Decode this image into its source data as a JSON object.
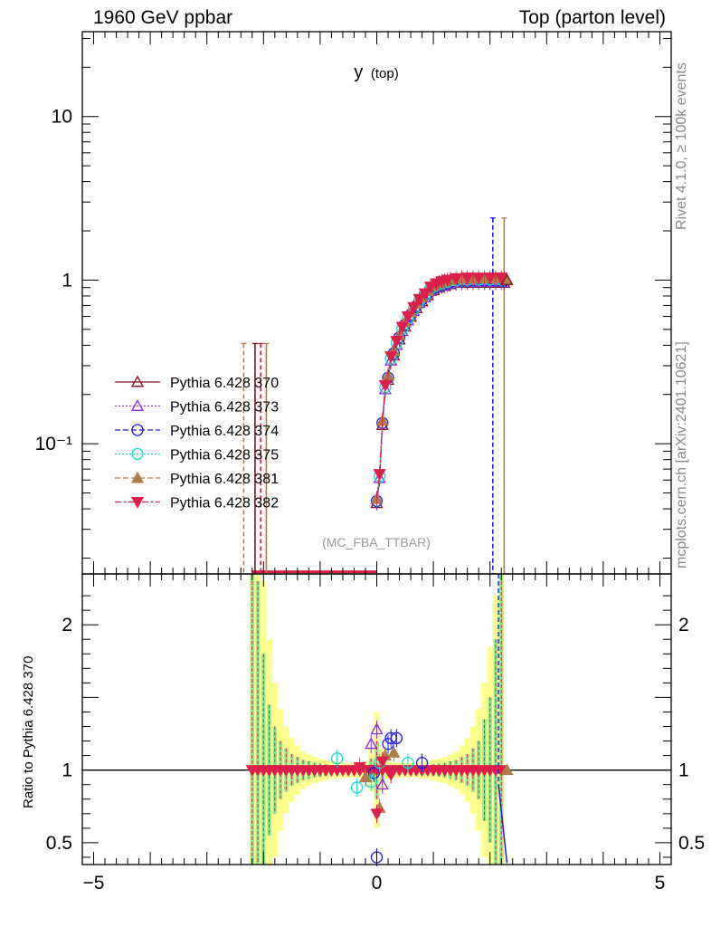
{
  "header": {
    "left": "1960 GeV ppbar",
    "right": "Top (parton level)"
  },
  "side_labels": {
    "rivet": "Rivet 4.1.0, ≥ 100k events",
    "mcplots": "mcplots.cern.ch [arXiv:2401.10621]"
  },
  "colors": {
    "s370": "#8b0f1f",
    "s373": "#8a2be2",
    "s374": "#1c1ce6",
    "s375": "#18d8c8",
    "s381": "#b07d4a",
    "s382": "#dc1f4a",
    "band_green": "#90ee90",
    "band_yellow": "#ffff8c"
  },
  "chart_data": [
    {
      "type": "line",
      "panel": "main",
      "title": "y (top)",
      "title_main": "y",
      "title_sub": "(top)",
      "annotation": "(MC_FBA_TTBAR)",
      "yscale": "log",
      "xlim": [
        -5.2,
        5.2
      ],
      "ylim": [
        0.016,
        33
      ],
      "ytick_labels": [
        {
          "value": 10,
          "label": "10"
        },
        {
          "value": 1,
          "label": "1"
        },
        {
          "value": 0.1,
          "label": "10⁻¹"
        }
      ],
      "legend": [
        {
          "name": "Pythia 6.428 370",
          "marker": "triangle-open",
          "line": "solid",
          "color_key": "s370"
        },
        {
          "name": "Pythia 6.428 373",
          "marker": "triangle-open",
          "line": "dotted",
          "color_key": "s373"
        },
        {
          "name": "Pythia 6.428 374",
          "marker": "circle-open",
          "line": "dashed",
          "color_key": "s374"
        },
        {
          "name": "Pythia 6.428 375",
          "marker": "circle-open",
          "line": "dotted",
          "color_key": "s375"
        },
        {
          "name": "Pythia 6.428 381",
          "marker": "triangle-filled",
          "line": "dashed",
          "color_key": "s381"
        },
        {
          "name": "Pythia 6.428 382",
          "marker": "triangledown-filled",
          "line": "dashdot",
          "color_key": "s382"
        }
      ],
      "legend_position": "middle-left",
      "curve": {
        "x": [
          0.0,
          0.05,
          0.1,
          0.15,
          0.2,
          0.25,
          0.3,
          0.35,
          0.4,
          0.45,
          0.5,
          0.55,
          0.6,
          0.65,
          0.7,
          0.75,
          0.8,
          0.85,
          0.9,
          0.95,
          1.0,
          1.05,
          1.1,
          1.15,
          1.2,
          1.25,
          1.3,
          1.4,
          1.5,
          1.6,
          1.7,
          1.8,
          1.9,
          2.0,
          2.1,
          2.2,
          2.25
        ],
        "y": [
          0.045,
          0.063,
          0.135,
          0.22,
          0.255,
          0.33,
          0.36,
          0.41,
          0.45,
          0.5,
          0.54,
          0.58,
          0.62,
          0.66,
          0.7,
          0.74,
          0.77,
          0.8,
          0.84,
          0.88,
          0.9,
          0.92,
          0.94,
          0.95,
          0.96,
          0.97,
          0.98,
          0.99,
          1.0,
          1.0,
          1.0,
          1.0,
          1.0,
          1.0,
          1.0,
          1.0,
          1.0
        ]
      },
      "floor_segment": {
        "x_from": -2.2,
        "x_to": 0.0,
        "y": 0.0165
      },
      "spikes": [
        {
          "x": -2.35,
          "y_top": 0.41,
          "color_key": "s381"
        },
        {
          "x": -2.15,
          "y_top": 0.41,
          "color_key": "s370"
        },
        {
          "x": -2.05,
          "y_top": 0.41,
          "color_key": "s382"
        },
        {
          "x": -1.95,
          "y_top": 0.41,
          "color_key": "s381"
        },
        {
          "x": 2.05,
          "y_top": 2.4,
          "color_key": "s374"
        },
        {
          "x": 2.25,
          "y_top": 2.4,
          "color_key": "s381"
        }
      ]
    },
    {
      "type": "line",
      "panel": "ratio",
      "ylabel": "Ratio to Pythia 6.428 370",
      "xlim": [
        -5.2,
        5.2
      ],
      "ylim": [
        0.35,
        2.35
      ],
      "xtick_labels": [
        {
          "value": -5,
          "label": "−5"
        },
        {
          "value": 0,
          "label": "0"
        },
        {
          "value": 5,
          "label": "5"
        }
      ],
      "ytick_labels": [
        {
          "value": 2,
          "label": "2"
        },
        {
          "value": 1,
          "label": "1"
        },
        {
          "value": 0.5,
          "label": "0.5"
        }
      ],
      "reference": 1.0,
      "band_x": [
        -2.2,
        -2.1,
        -2.0,
        -1.9,
        -1.8,
        -1.7,
        -1.6,
        -1.5,
        -1.4,
        -1.3,
        -1.2,
        -1.1,
        -1.0,
        -0.9,
        -0.8,
        -0.7,
        -0.6,
        -0.5,
        -0.4,
        -0.3,
        -0.2,
        -0.1,
        0.0,
        0.1,
        0.2,
        0.3,
        0.4,
        0.5,
        0.6,
        0.7,
        0.8,
        0.9,
        1.0,
        1.1,
        1.2,
        1.3,
        1.4,
        1.5,
        1.6,
        1.7,
        1.8,
        1.9,
        2.0,
        2.1,
        2.2
      ],
      "band_green_half": [
        1.5,
        1.3,
        0.8,
        0.45,
        0.3,
        0.2,
        0.15,
        0.11,
        0.09,
        0.07,
        0.06,
        0.05,
        0.045,
        0.04,
        0.035,
        0.035,
        0.03,
        0.03,
        0.03,
        0.03,
        0.035,
        0.08,
        0.2,
        0.08,
        0.035,
        0.03,
        0.03,
        0.03,
        0.03,
        0.03,
        0.035,
        0.035,
        0.04,
        0.045,
        0.05,
        0.06,
        0.07,
        0.09,
        0.11,
        0.15,
        0.2,
        0.35,
        0.5,
        0.9,
        1.5
      ],
      "band_yellow_half": [
        1.6,
        1.5,
        1.3,
        0.9,
        0.6,
        0.42,
        0.3,
        0.22,
        0.17,
        0.13,
        0.11,
        0.09,
        0.08,
        0.07,
        0.06,
        0.06,
        0.05,
        0.05,
        0.05,
        0.055,
        0.06,
        0.15,
        0.4,
        0.15,
        0.06,
        0.055,
        0.05,
        0.05,
        0.05,
        0.05,
        0.06,
        0.06,
        0.07,
        0.08,
        0.09,
        0.11,
        0.13,
        0.17,
        0.22,
        0.3,
        0.42,
        0.6,
        0.85,
        1.2,
        1.6
      ],
      "markers": [
        {
          "color_key": "s373",
          "x": [
            0.0,
            0.1,
            -0.1
          ],
          "y": [
            1.28,
            0.9,
            1.18
          ]
        },
        {
          "color_key": "s374",
          "x": [
            0.0,
            0.2,
            0.25,
            0.35,
            -0.05,
            0.8
          ],
          "y": [
            0.4,
            1.18,
            1.22,
            1.22,
            0.98,
            1.05
          ]
        },
        {
          "color_key": "s375",
          "x": [
            -0.7,
            -0.35,
            -0.1,
            0.05,
            0.55
          ],
          "y": [
            1.08,
            0.88,
            0.92,
            1.05,
            1.05
          ]
        },
        {
          "color_key": "s381",
          "x": [
            0.05,
            0.15,
            0.3,
            -0.2
          ],
          "y": [
            0.74,
            1.1,
            1.12,
            0.95
          ]
        },
        {
          "color_key": "s382",
          "x": [
            0.0,
            0.1,
            0.25,
            -0.3
          ],
          "y": [
            0.7,
            1.06,
            0.97,
            1.02
          ]
        }
      ],
      "edge_drop": {
        "x": [
          2.15,
          2.3
        ],
        "y": [
          0.9,
          0.36
        ],
        "color_key": "s374"
      }
    }
  ]
}
